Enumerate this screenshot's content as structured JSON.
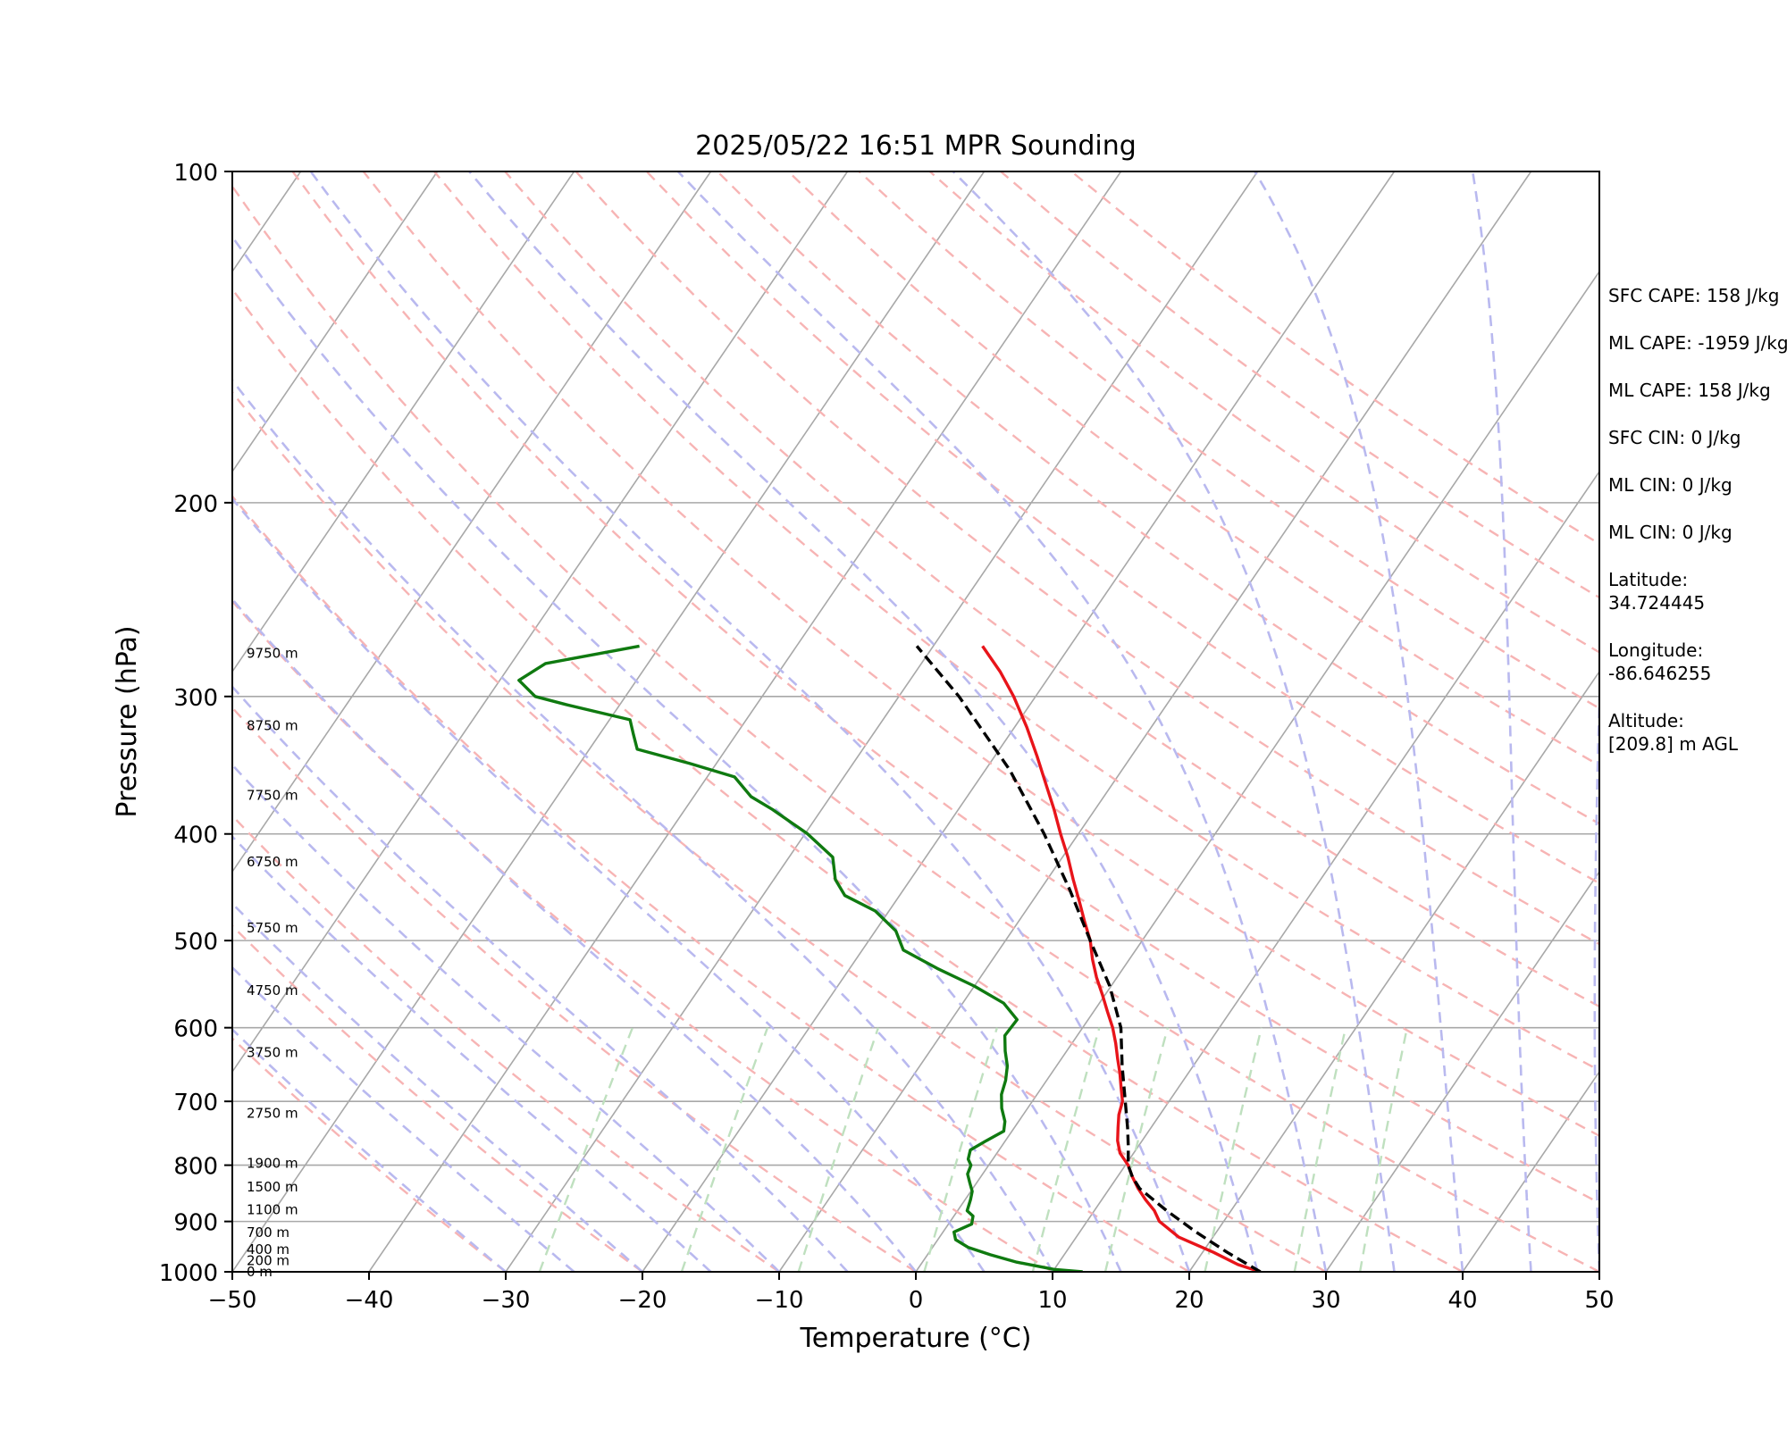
{
  "chart_data": {
    "type": "line",
    "chart_kind": "skew-t log-p",
    "title": "2025/05/22 16:51 MPR Sounding",
    "xlabel": "Temperature (°C)",
    "ylabel": "Pressure (hPa)",
    "xlim": [
      -50,
      50
    ],
    "ylim": [
      1000,
      100
    ],
    "y_scale": "log",
    "skew_deg_per_decade": 55,
    "x_ticks": [
      "−50",
      "−40",
      "−30",
      "−20",
      "−10",
      "0",
      "10",
      "20",
      "30",
      "40",
      "50"
    ],
    "x_tick_values": [
      -50,
      -40,
      -30,
      -20,
      -10,
      0,
      10,
      20,
      30,
      40,
      50
    ],
    "y_ticks": [
      "100",
      "200",
      "300",
      "400",
      "500",
      "600",
      "700",
      "800",
      "900",
      "1000"
    ],
    "y_tick_values": [
      100,
      200,
      300,
      400,
      500,
      600,
      700,
      800,
      900,
      1000
    ],
    "grid": true,
    "series": [
      {
        "role": "temperature",
        "color": "#e8141a",
        "points": [
          [
            1000,
            25.2
          ],
          [
            985,
            23.2
          ],
          [
            960,
            20.8
          ],
          [
            930,
            17.5
          ],
          [
            900,
            15.3
          ],
          [
            880,
            14.4
          ],
          [
            860,
            13.2
          ],
          [
            840,
            12.1
          ],
          [
            820,
            11.1
          ],
          [
            800,
            10.2
          ],
          [
            780,
            9.0
          ],
          [
            760,
            8.2
          ],
          [
            740,
            7.6
          ],
          [
            720,
            7.0
          ],
          [
            700,
            6.6
          ],
          [
            680,
            5.8
          ],
          [
            660,
            5.0
          ],
          [
            640,
            4.1
          ],
          [
            620,
            3.2
          ],
          [
            600,
            2.2
          ],
          [
            580,
            1.0
          ],
          [
            560,
            -0.2
          ],
          [
            540,
            -1.5
          ],
          [
            520,
            -2.7
          ],
          [
            500,
            -3.8
          ],
          [
            480,
            -5.2
          ],
          [
            460,
            -6.6
          ],
          [
            440,
            -8.1
          ],
          [
            420,
            -9.6
          ],
          [
            400,
            -11.3
          ],
          [
            380,
            -13.0
          ],
          [
            360,
            -14.9
          ],
          [
            340,
            -16.9
          ],
          [
            320,
            -19.1
          ],
          [
            300,
            -21.6
          ],
          [
            285,
            -23.8
          ],
          [
            270,
            -26.4
          ]
        ]
      },
      {
        "role": "dewpoint",
        "color": "#0f7a10",
        "points": [
          [
            1000,
            12.2
          ],
          [
            995,
            10.0
          ],
          [
            980,
            6.9
          ],
          [
            965,
            4.6
          ],
          [
            950,
            2.6
          ],
          [
            935,
            1.3
          ],
          [
            920,
            0.8
          ],
          [
            905,
            1.7
          ],
          [
            890,
            1.4
          ],
          [
            880,
            0.7
          ],
          [
            860,
            0.4
          ],
          [
            845,
            0.1
          ],
          [
            830,
            -0.5
          ],
          [
            815,
            -1.1
          ],
          [
            800,
            -1.3
          ],
          [
            790,
            -1.8
          ],
          [
            775,
            -2.1
          ],
          [
            760,
            -1.4
          ],
          [
            745,
            -0.6
          ],
          [
            730,
            -1.0
          ],
          [
            710,
            -1.9
          ],
          [
            690,
            -2.6
          ],
          [
            670,
            -3.0
          ],
          [
            650,
            -3.6
          ],
          [
            630,
            -4.5
          ],
          [
            610,
            -5.3
          ],
          [
            590,
            -5.2
          ],
          [
            570,
            -7.0
          ],
          [
            550,
            -10.0
          ],
          [
            530,
            -13.6
          ],
          [
            510,
            -17.0
          ],
          [
            490,
            -18.5
          ],
          [
            470,
            -21.0
          ],
          [
            455,
            -24.0
          ],
          [
            440,
            -25.5
          ],
          [
            420,
            -26.8
          ],
          [
            400,
            -29.8
          ],
          [
            380,
            -33.6
          ],
          [
            370,
            -35.8
          ],
          [
            355,
            -38.0
          ],
          [
            345,
            -42.0
          ],
          [
            335,
            -46.5
          ],
          [
            325,
            -47.5
          ],
          [
            315,
            -48.5
          ],
          [
            305,
            -54.0
          ],
          [
            300,
            -56.6
          ],
          [
            290,
            -58.6
          ],
          [
            280,
            -57.5
          ],
          [
            270,
            -51.5
          ]
        ]
      },
      {
        "role": "parcel",
        "color": "#000000",
        "style": "dashed",
        "points": [
          [
            1000,
            25.2
          ],
          [
            960,
            21.8
          ],
          [
            920,
            18.5
          ],
          [
            880,
            15.3
          ],
          [
            840,
            12.2
          ],
          [
            820,
            11.1
          ],
          [
            800,
            10.2
          ],
          [
            770,
            9.3
          ],
          [
            740,
            8.3
          ],
          [
            700,
            6.8
          ],
          [
            650,
            4.8
          ],
          [
            600,
            2.8
          ],
          [
            550,
            -0.1
          ],
          [
            500,
            -3.8
          ],
          [
            450,
            -7.8
          ],
          [
            400,
            -12.5
          ],
          [
            350,
            -18.2
          ],
          [
            300,
            -25.6
          ],
          [
            270,
            -31.2
          ]
        ]
      }
    ],
    "height_labels": [
      {
        "text": "0 m",
        "p": 1000
      },
      {
        "text": "200 m",
        "p": 977
      },
      {
        "text": "400 m",
        "p": 954
      },
      {
        "text": "700 m",
        "p": 921
      },
      {
        "text": "1100 m",
        "p": 878
      },
      {
        "text": "1500 m",
        "p": 837
      },
      {
        "text": "1900 m",
        "p": 797
      },
      {
        "text": "2750 m",
        "p": 718
      },
      {
        "text": "3750 m",
        "p": 632
      },
      {
        "text": "4750 m",
        "p": 555
      },
      {
        "text": "5750 m",
        "p": 487
      },
      {
        "text": "6750 m",
        "p": 424
      },
      {
        "text": "7750 m",
        "p": 369
      },
      {
        "text": "8750 m",
        "p": 319
      },
      {
        "text": "9750 m",
        "p": 274
      }
    ],
    "background_lines": {
      "isotherm_color": "#a8a8a8",
      "dry_adiabat_color": "#f7b4b4",
      "moist_adiabat_color": "#b9b9ef",
      "mixing_ratio_color": "#bfe0bf"
    }
  },
  "side_panel": {
    "sfc_cape": "SFC CAPE: 158 J/kg",
    "ml_cape_1": "ML CAPE: -1959 J/kg",
    "ml_cape_2": "ML CAPE: 158 J/kg",
    "sfc_cin": "SFC CIN: 0 J/kg",
    "ml_cin_1": "ML CIN: 0 J/kg",
    "ml_cin_2": "ML CIN: 0 J/kg",
    "latitude_label": "Latitude:",
    "latitude_value": "34.724445",
    "longitude_label": "Longitude:",
    "longitude_value": "-86.646255",
    "altitude_label": "Altitude:",
    "altitude_value": "[209.8] m AGL"
  }
}
